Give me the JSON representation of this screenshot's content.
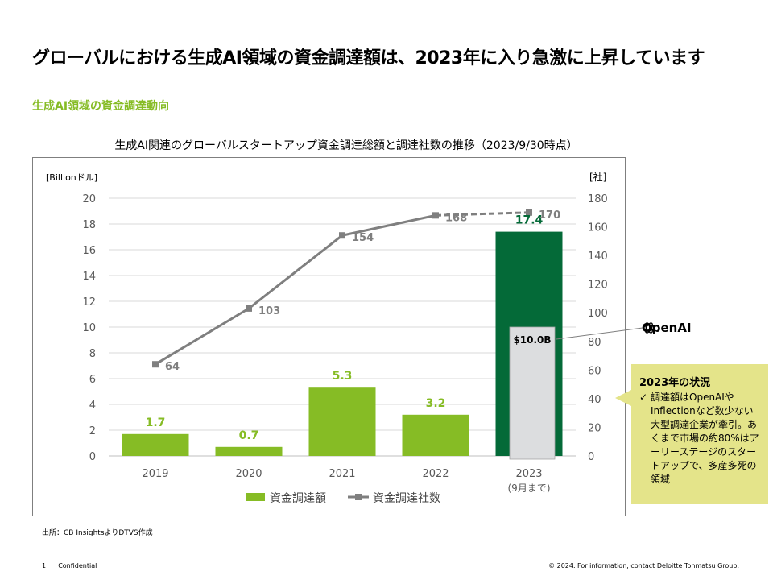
{
  "header": {
    "title": "グローバルにおける生成AI領域の資金調達額は、2023年に入り急激に上昇しています",
    "subtitle": "生成AI領域の資金調達動向"
  },
  "chart_data": {
    "type": "bar",
    "title": "生成AI関連のグローバルスタートアップ資金調達総額と調達社数の推移（2023/9/30時点）",
    "categories": [
      "2019",
      "2020",
      "2021",
      "2022",
      "2023"
    ],
    "category_sublabels": [
      "",
      "",
      "",
      "",
      "(9月まで)"
    ],
    "ylabel_left": "[Billionドル]",
    "ylabel_right": "[社]",
    "ylim_left": [
      0,
      20
    ],
    "yticks_left": [
      0,
      2,
      4,
      6,
      8,
      10,
      12,
      14,
      16,
      18,
      20
    ],
    "ylim_right": [
      0,
      180
    ],
    "yticks_right": [
      0,
      20,
      40,
      60,
      80,
      100,
      120,
      140,
      160,
      180
    ],
    "grid": true,
    "legend_position": "bottom",
    "series": [
      {
        "name": "資金調達額",
        "type": "bar",
        "axis": "left",
        "values": [
          1.7,
          0.7,
          5.3,
          3.2,
          17.4
        ],
        "labels": [
          "1.7",
          "0.7",
          "5.3",
          "3.2",
          "17.4"
        ],
        "color": "#86bc25",
        "highlight_index": 4,
        "highlight_color": "#046a38"
      },
      {
        "name": "資金調達社数",
        "type": "line",
        "axis": "right",
        "values": [
          64,
          103,
          154,
          168,
          170
        ],
        "labels": [
          "64",
          "103",
          "154",
          "168",
          "170"
        ],
        "color": "#7f7f7f",
        "dashed_last_segment": true
      }
    ],
    "annotations": [
      {
        "category": "2023",
        "value": 10.0,
        "label": "$10.0B",
        "color": "#dcdddf",
        "note": "OpenAI"
      }
    ]
  },
  "openai_label": "OpenAI",
  "callout": {
    "heading": "2023年の状況",
    "check": "✓",
    "body": "調達額はOpenAIやInflectionなど数少ない大型調達企業が牽引。あくまで市場の約80%はアーリーステージのスタートアップで、多産多死の領域"
  },
  "source": "出所：CB InsightsよりDTVS作成",
  "footer": {
    "page": "1",
    "confidential": "Confidential",
    "copyright": "© 2024. For information, contact Deloitte Tohmatsu Group."
  },
  "colors": {
    "accent": "#86bc25",
    "dark_green": "#046a38",
    "gray": "#7f7f7f",
    "callout_bg": "#e4e48a"
  }
}
